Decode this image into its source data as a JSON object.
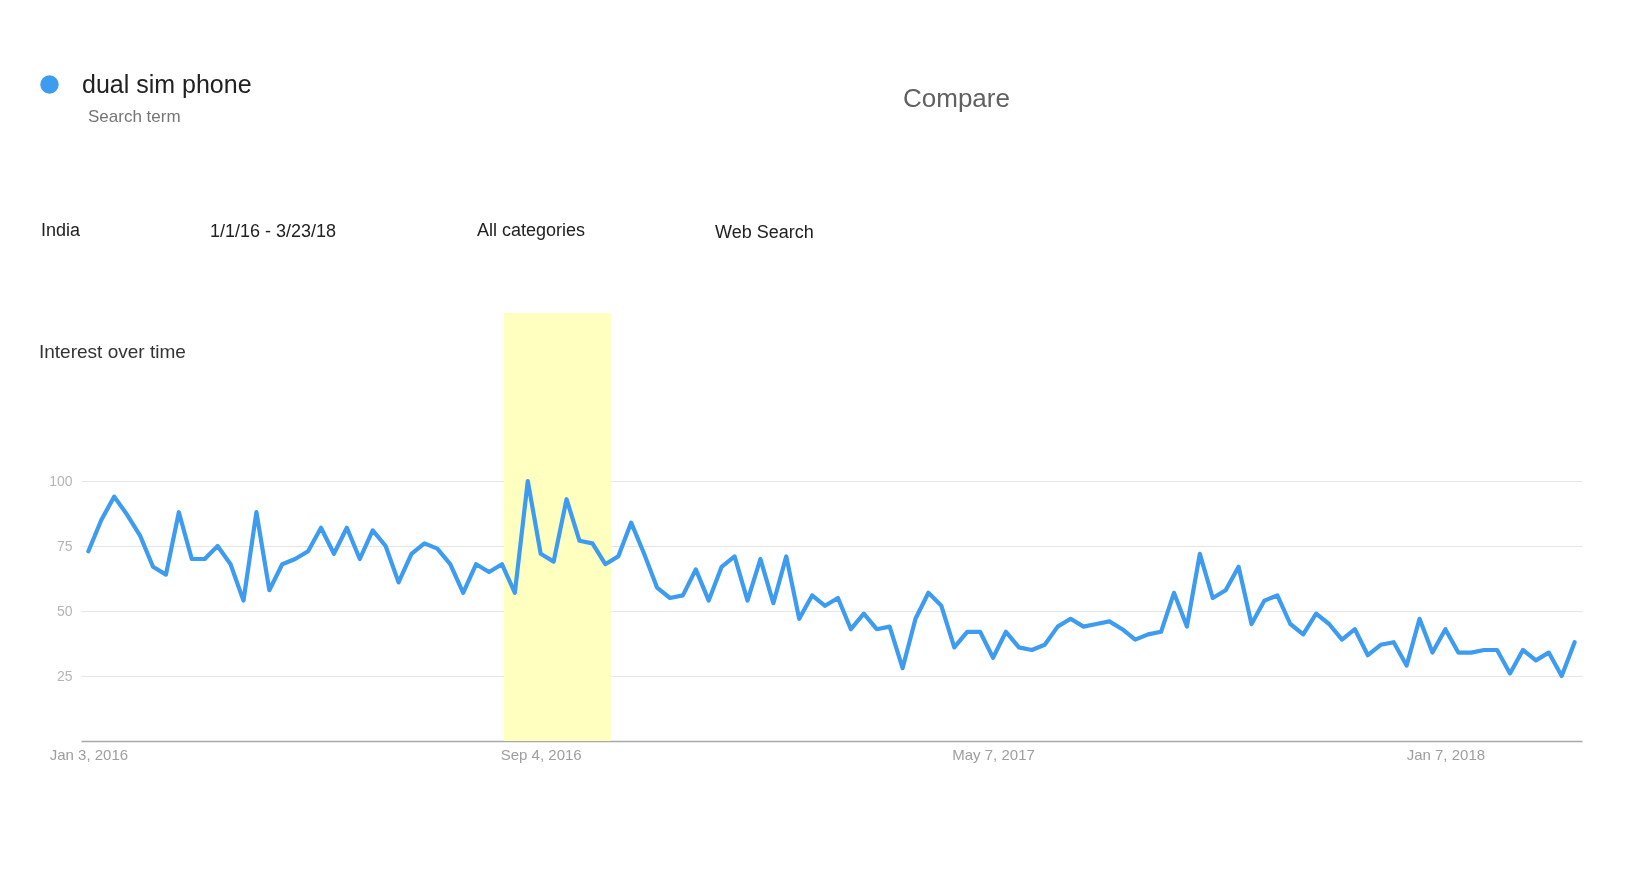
{
  "chart_data": {
    "type": "line",
    "title": "Interest over time",
    "x": [
      "2016-01-03",
      "2016-01-10",
      "2016-01-17",
      "2016-01-24",
      "2016-01-31",
      "2016-02-07",
      "2016-02-14",
      "2016-02-21",
      "2016-02-28",
      "2016-03-06",
      "2016-03-13",
      "2016-03-20",
      "2016-03-27",
      "2016-04-03",
      "2016-04-10",
      "2016-04-17",
      "2016-04-24",
      "2016-05-01",
      "2016-05-08",
      "2016-05-15",
      "2016-05-22",
      "2016-05-29",
      "2016-06-05",
      "2016-06-12",
      "2016-06-19",
      "2016-06-26",
      "2016-07-03",
      "2016-07-10",
      "2016-07-17",
      "2016-07-24",
      "2016-07-31",
      "2016-08-07",
      "2016-08-14",
      "2016-08-21",
      "2016-08-28",
      "2016-09-04",
      "2016-09-11",
      "2016-09-18",
      "2016-09-25",
      "2016-10-02",
      "2016-10-09",
      "2016-10-16",
      "2016-10-23",
      "2016-10-30",
      "2016-11-06",
      "2016-11-13",
      "2016-11-20",
      "2016-11-27",
      "2016-12-04",
      "2016-12-11",
      "2016-12-18",
      "2016-12-25",
      "2017-01-01",
      "2017-01-08",
      "2017-01-15",
      "2017-01-22",
      "2017-01-29",
      "2017-02-05",
      "2017-02-12",
      "2017-02-19",
      "2017-02-26",
      "2017-03-05",
      "2017-03-12",
      "2017-03-19",
      "2017-03-26",
      "2017-04-02",
      "2017-04-09",
      "2017-04-16",
      "2017-04-23",
      "2017-04-30",
      "2017-05-07",
      "2017-05-14",
      "2017-05-21",
      "2017-05-28",
      "2017-06-04",
      "2017-06-11",
      "2017-06-18",
      "2017-06-25",
      "2017-07-02",
      "2017-07-09",
      "2017-07-16",
      "2017-07-23",
      "2017-07-30",
      "2017-08-06",
      "2017-08-13",
      "2017-08-20",
      "2017-08-27",
      "2017-09-03",
      "2017-09-10",
      "2017-09-17",
      "2017-09-24",
      "2017-10-01",
      "2017-10-08",
      "2017-10-15",
      "2017-10-22",
      "2017-10-29",
      "2017-11-05",
      "2017-11-12",
      "2017-11-19",
      "2017-11-26",
      "2017-12-03",
      "2017-12-10",
      "2017-12-17",
      "2017-12-24",
      "2017-12-31",
      "2018-01-07",
      "2018-01-14",
      "2018-01-21",
      "2018-01-28",
      "2018-02-04",
      "2018-02-11",
      "2018-02-18",
      "2018-02-25",
      "2018-03-04",
      "2018-03-11",
      "2018-03-18"
    ],
    "series": [
      {
        "name": "dual sim phone",
        "color": "#3d9cf0",
        "values": [
          73,
          85,
          94,
          87,
          79,
          67,
          64,
          88,
          70,
          70,
          75,
          68,
          54,
          88,
          58,
          68,
          70,
          73,
          82,
          72,
          82,
          70,
          81,
          75,
          61,
          72,
          76,
          74,
          68,
          57,
          68,
          65,
          68,
          57,
          100,
          72,
          69,
          93,
          77,
          76,
          68,
          71,
          84,
          72,
          59,
          55,
          56,
          66,
          54,
          67,
          71,
          54,
          70,
          53,
          71,
          47,
          56,
          52,
          55,
          43,
          49,
          43,
          44,
          28,
          47,
          57,
          52,
          36,
          42,
          42,
          32,
          42,
          36,
          35,
          37,
          44,
          47,
          44,
          45,
          46,
          43,
          39,
          41,
          42,
          57,
          44,
          72,
          55,
          58,
          67,
          45,
          54,
          56,
          45,
          41,
          49,
          45,
          39,
          43,
          33,
          37,
          38,
          29,
          47,
          34,
          43,
          34,
          34,
          35,
          35,
          26,
          35,
          31,
          34,
          25,
          38
        ]
      }
    ],
    "xlim": [
      "2015-12-30",
      "2018-03-22"
    ],
    "ylim": [
      0,
      100
    ],
    "xticks": [
      {
        "value": "2016-01-03",
        "label": "Jan 3, 2016"
      },
      {
        "value": "2016-09-04",
        "label": "Sep 4, 2016"
      },
      {
        "value": "2017-05-07",
        "label": "May 7, 2017"
      },
      {
        "value": "2018-01-07",
        "label": "Jan 7, 2018"
      }
    ],
    "yticks": [
      25,
      50,
      75,
      100
    ],
    "grid": "y",
    "legend": "top left",
    "bands": [
      {
        "axis": "x",
        "from": "2016-08-15",
        "to": "2016-10-12",
        "color": "#ffffc0"
      }
    ],
    "annotations": [
      "Search term",
      "Compare",
      "India",
      "1/1/16 - 3/23/18",
      "All categories",
      "Web Search"
    ]
  }
}
